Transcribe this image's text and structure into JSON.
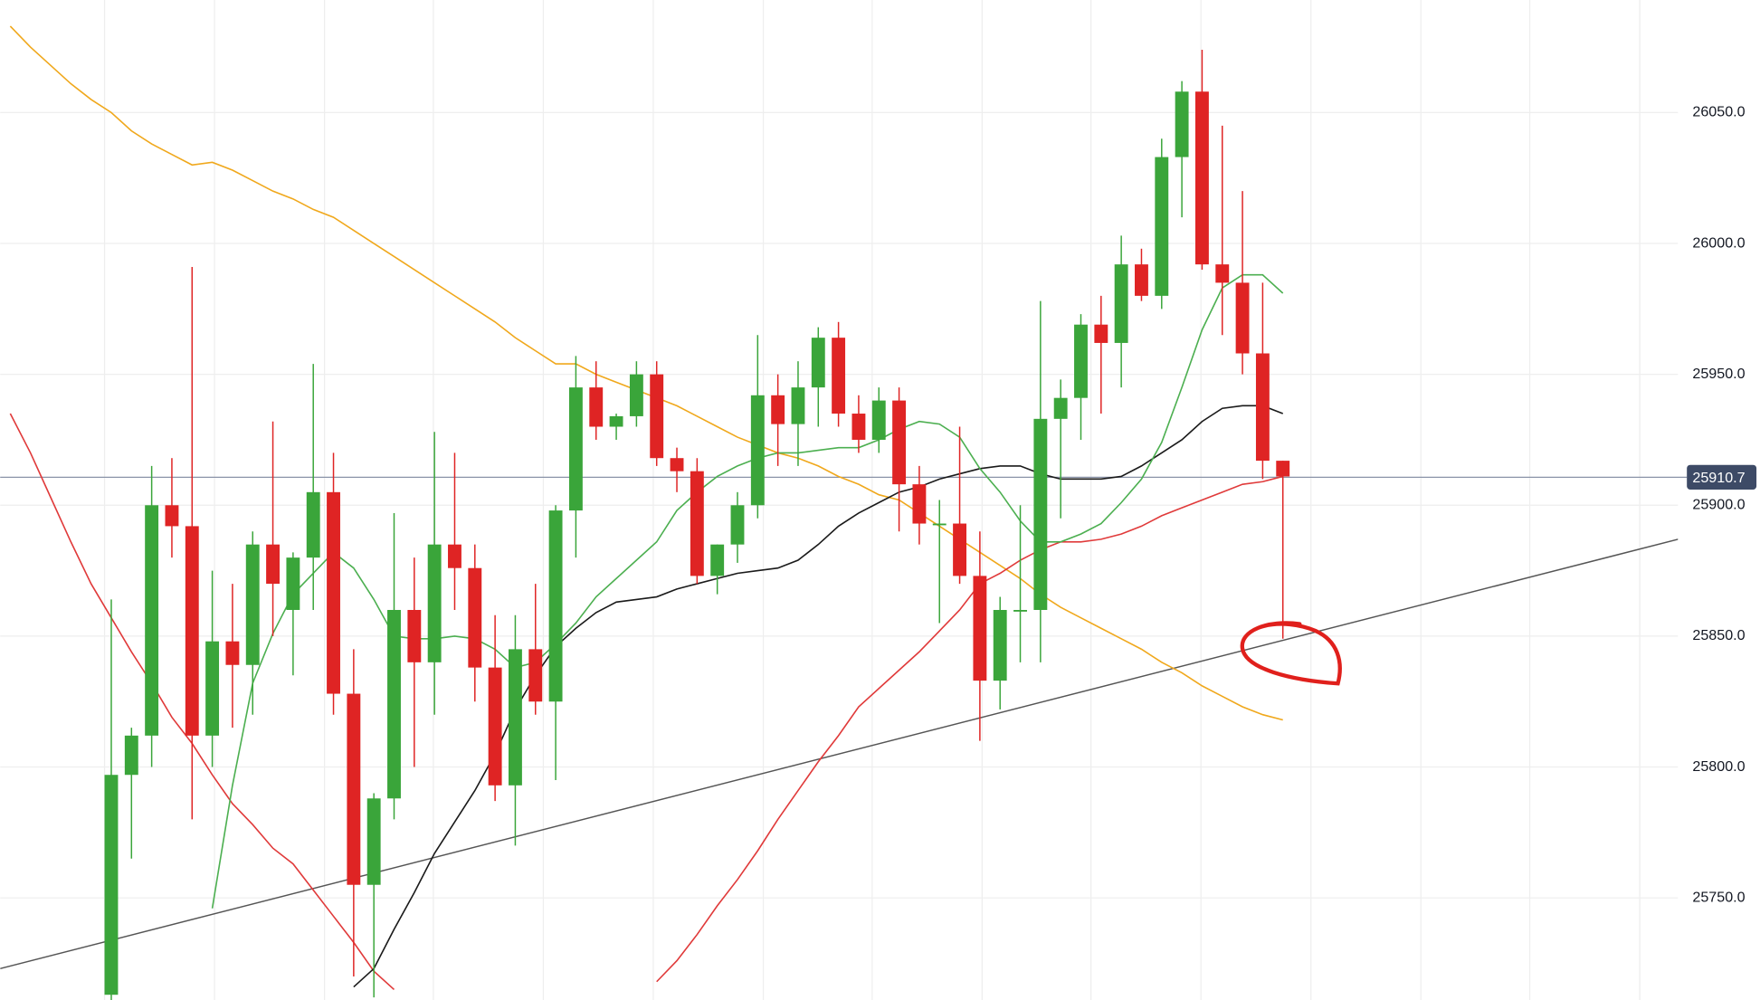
{
  "chart_data": {
    "type": "candlestick",
    "up_color": "#3aa53a",
    "down_color": "#df2424",
    "ylim": [
      25711,
      26093
    ],
    "yticks": [
      {
        "value": 25750,
        "label": "25750.0"
      },
      {
        "value": 25800,
        "label": "25800.0"
      },
      {
        "value": 25850,
        "label": "25850.0"
      },
      {
        "value": 25900,
        "label": "25900.0"
      },
      {
        "value": 25950,
        "label": "25950.0"
      },
      {
        "value": 26000,
        "label": "26000.0"
      },
      {
        "value": 26050,
        "label": "26050.0"
      }
    ],
    "grid": true,
    "open": [
      null,
      null,
      null,
      null,
      null,
      25713,
      25797,
      25812,
      25900,
      25892,
      25812,
      25848,
      25839,
      25885,
      25860,
      25880,
      25905,
      25828,
      25755,
      25788,
      25860,
      25840,
      25885,
      25876,
      25838,
      25793,
      25845,
      25825,
      25898,
      25945,
      25930,
      25934,
      25950,
      25918,
      25913,
      25873,
      25885,
      25900,
      25942,
      25931,
      25945,
      25964,
      25935,
      25925,
      25940,
      25908,
      25893,
      25893,
      25873,
      25833,
      25860,
      25860,
      25933,
      25941,
      25969,
      25962,
      25992,
      25980,
      26033,
      26058,
      25992,
      25985,
      25958,
      25917
    ],
    "high": [
      null,
      null,
      null,
      null,
      null,
      25864,
      25815,
      25915,
      25918,
      25991,
      25875,
      25870,
      25890,
      25932,
      25882,
      25954,
      25920,
      25845,
      25790,
      25897,
      25880,
      25928,
      25920,
      25885,
      25858,
      25858,
      25870,
      25900,
      25957,
      25955,
      25935,
      25955,
      25955,
      25922,
      25918,
      25885,
      25905,
      25965,
      25950,
      25955,
      25968,
      25970,
      25942,
      25945,
      25945,
      25915,
      25902,
      25930,
      25890,
      25865,
      25900,
      25978,
      25948,
      25973,
      25980,
      26003,
      25998,
      26040,
      26062,
      26074,
      26045,
      26020,
      25985,
      25917
    ],
    "low": [
      null,
      null,
      null,
      null,
      null,
      25711,
      25765,
      25800,
      25880,
      25780,
      25800,
      25815,
      25820,
      25850,
      25835,
      25860,
      25820,
      25720,
      25712,
      25780,
      25800,
      25820,
      25860,
      25825,
      25787,
      25770,
      25820,
      25795,
      25880,
      25925,
      25925,
      25930,
      25915,
      25905,
      25870,
      25866,
      25878,
      25895,
      25915,
      25915,
      25930,
      25930,
      25920,
      25920,
      25890,
      25885,
      25855,
      25870,
      25810,
      25822,
      25840,
      25840,
      25895,
      25925,
      25935,
      25945,
      25978,
      25975,
      26010,
      25990,
      25965,
      25950,
      25910,
      25849
    ],
    "close": [
      null,
      null,
      null,
      null,
      null,
      25797,
      25812,
      25900,
      25892,
      25812,
      25848,
      25839,
      25885,
      25870,
      25880,
      25905,
      25828,
      25755,
      25788,
      25860,
      25840,
      25885,
      25876,
      25838,
      25793,
      25845,
      25825,
      25898,
      25945,
      25930,
      25934,
      25950,
      25918,
      25913,
      25873,
      25885,
      25900,
      25942,
      25931,
      25945,
      25964,
      25935,
      25925,
      25940,
      25908,
      25893,
      25893,
      25873,
      25833,
      25860,
      25860,
      25933,
      25941,
      25969,
      25962,
      25992,
      25980,
      26033,
      26058,
      25992,
      25985,
      25958,
      25917,
      25911
    ],
    "lines": [
      {
        "color": "#f0a81c",
        "values": [
          26083,
          26075,
          26068,
          26061,
          26055,
          26050,
          26043,
          26038,
          26034,
          26030,
          26031,
          26028,
          26024,
          26020,
          26017,
          26013,
          26010,
          26005,
          26000,
          25995,
          25990,
          25985,
          25980,
          25975,
          25970,
          25964,
          25959,
          25954,
          25954,
          25950,
          25947,
          25944,
          25941,
          25938,
          25934,
          25930,
          25926,
          25923,
          25920,
          25918,
          25915,
          25911,
          25908,
          25904,
          25902,
          25897,
          25892,
          25887,
          25882,
          25877,
          25872,
          25866,
          25861,
          25857,
          25853,
          25849,
          25845,
          25840,
          25836,
          25831,
          25827,
          25823,
          25820,
          25818
        ]
      },
      {
        "color": "#e03a3a",
        "values": [
          25935,
          25920,
          25903,
          25886,
          25870,
          25857,
          25844,
          25832,
          25819,
          25809,
          25797,
          25786,
          25778,
          25769,
          25763,
          25753,
          25743,
          25733,
          25722,
          25715,
          null,
          null,
          null,
          null,
          null,
          null,
          null,
          null,
          null,
          null,
          null,
          null,
          25718,
          25726,
          25736,
          25747,
          25757,
          25768,
          25780,
          25791,
          25802,
          25812,
          25823,
          25830,
          25837,
          25844,
          25852,
          25860,
          25870,
          25874,
          25879,
          25883,
          25886,
          25886,
          25887,
          25889,
          25892,
          25896,
          25899,
          25902,
          25905,
          25908,
          25909,
          25911
        ]
      },
      {
        "color": "#1a1a1a",
        "values": [
          null,
          null,
          null,
          null,
          null,
          null,
          null,
          null,
          null,
          null,
          null,
          null,
          null,
          null,
          null,
          null,
          null,
          25716,
          25723,
          25738,
          25752,
          25767,
          25779,
          25791,
          25805,
          25822,
          25835,
          25846,
          25853,
          25859,
          25863,
          25864,
          25865,
          25868,
          25870,
          25872,
          25874,
          25875,
          25876,
          25879,
          25885,
          25892,
          25897,
          25901,
          25905,
          25907,
          25910,
          25912,
          25914,
          25915,
          25915,
          25912,
          25910,
          25910,
          25910,
          25911,
          25915,
          25920,
          25925,
          25932,
          25937,
          25938,
          25938,
          25935
        ]
      },
      {
        "color": "#4caf50",
        "values": [
          null,
          null,
          null,
          null,
          null,
          null,
          null,
          null,
          null,
          null,
          25746,
          25793,
          25832,
          25851,
          25866,
          25874,
          25882,
          25876,
          25864,
          25850,
          25849,
          25849,
          25850,
          25849,
          25845,
          25838,
          25840,
          25847,
          25855,
          25865,
          25872,
          25879,
          25886,
          25898,
          25905,
          25911,
          25915,
          25918,
          25920,
          25920,
          25921,
          25922,
          25922,
          25925,
          25929,
          25932,
          25931,
          25926,
          25914,
          25905,
          25894,
          25886,
          25886,
          25889,
          25893,
          25901,
          25910,
          25924,
          25945,
          25967,
          25983,
          25988,
          25988,
          25981
        ]
      }
    ],
    "trend_line": [
      25723,
      25895
    ],
    "last_price": 25910.7
  }
}
